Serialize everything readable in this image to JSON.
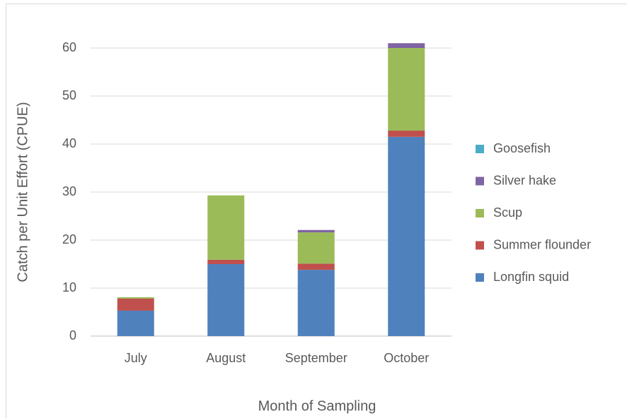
{
  "chart_data": {
    "type": "stacked_bar",
    "x_label": "Month of Sampling",
    "y_label": "Catch per Unit Effort (CPUE)",
    "categories": [
      "July",
      "August",
      "September",
      "October"
    ],
    "series": [
      {
        "name": "Longfin squid",
        "color": "#4f81bd",
        "values": [
          5.3,
          15.0,
          13.8,
          41.5
        ]
      },
      {
        "name": "Summer flounder",
        "color": "#c0504d",
        "values": [
          2.5,
          0.9,
          1.3,
          1.3
        ]
      },
      {
        "name": "Scup",
        "color": "#9bbb59",
        "values": [
          0.3,
          13.4,
          6.5,
          17.2
        ]
      },
      {
        "name": "Silver hake",
        "color": "#8064a2",
        "values": [
          0,
          0,
          0.5,
          1.0
        ]
      },
      {
        "name": "Goosefish",
        "color": "#4bacc6",
        "values": [
          0,
          0,
          0,
          0
        ]
      }
    ],
    "ylim": [
      0,
      60
    ],
    "yticks": [
      0,
      10,
      20,
      30,
      40,
      50,
      60
    ],
    "grid": true,
    "legend": "right"
  }
}
